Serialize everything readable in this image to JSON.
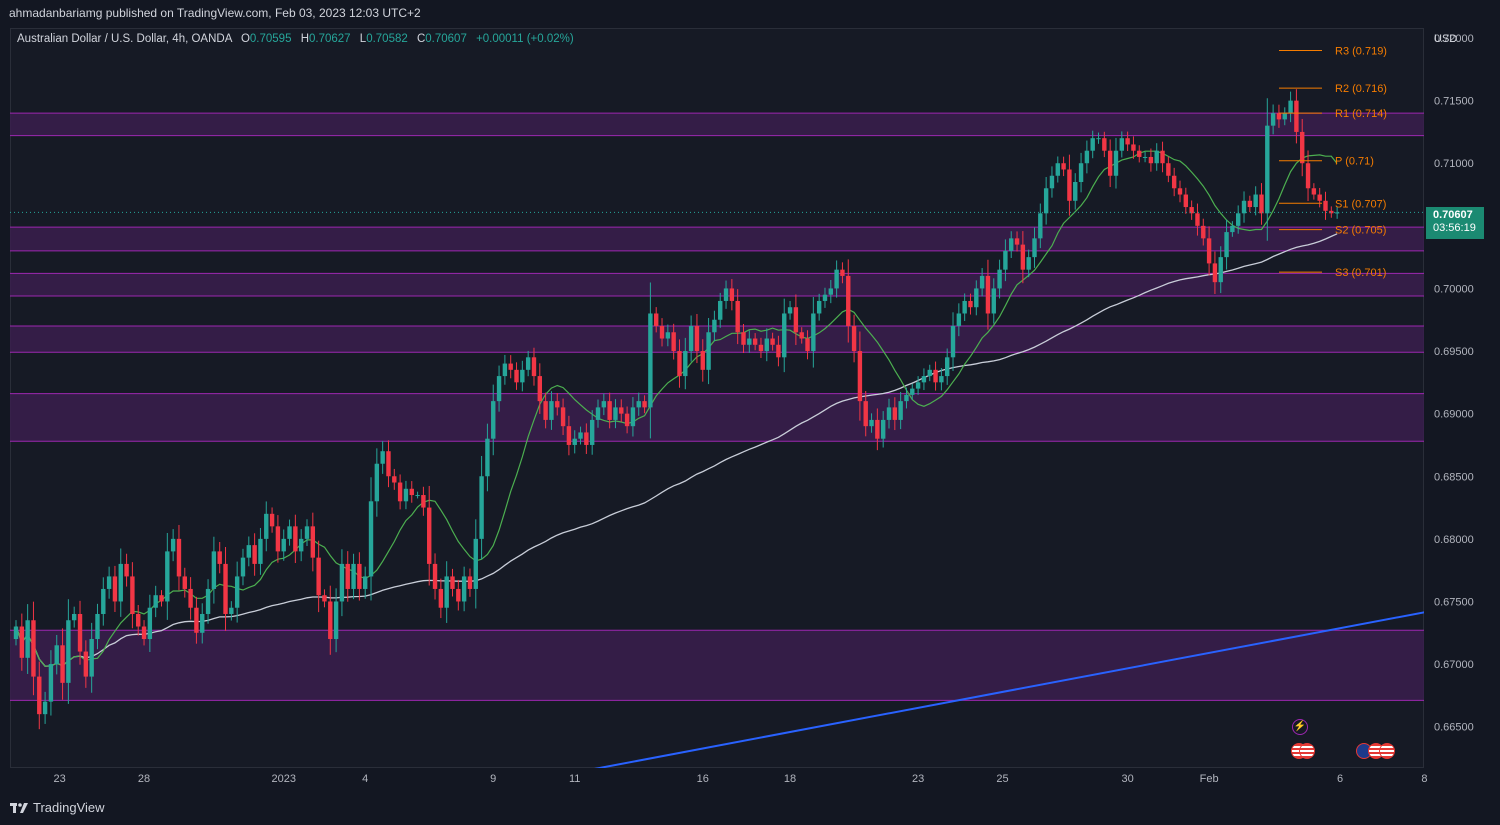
{
  "header": {
    "published": "ahmadanbariamg published on TradingView.com, Feb 03, 2023 12:03 UTC+2"
  },
  "legend": {
    "symbol": "Australian Dollar / U.S. Dollar, 4h, OANDA",
    "open_label": "O",
    "open": "0.70595",
    "high_label": "H",
    "high": "0.70627",
    "low_label": "L",
    "low": "0.70582",
    "close_label": "C",
    "close": "0.70607",
    "change": "+0.00011 (+0.02%)"
  },
  "axis": {
    "currency": "USD"
  },
  "price_tag": {
    "price": "0.70607",
    "countdown": "03:56:19"
  },
  "pivots": [
    {
      "label": "R3 (0.719)",
      "value": 0.719
    },
    {
      "label": "R2 (0.716)",
      "value": 0.716
    },
    {
      "label": "R1 (0.714)",
      "value": 0.714
    },
    {
      "label": "P (0.71)",
      "value": 0.7102
    },
    {
      "label": "S1 (0.707)",
      "value": 0.7068
    },
    {
      "label": "S2 (0.705)",
      "value": 0.7047
    },
    {
      "label": "S3 (0.701)",
      "value": 0.7013
    }
  ],
  "footer": {
    "brand": "TradingView"
  },
  "colors": {
    "up": "#26a69a",
    "down": "#f23645",
    "zone_fill": "#3a1e4e",
    "zone_border": "#9c27b0",
    "pivot": "#f57c00",
    "trendline": "#2962ff",
    "ma_fast": "#4caf50",
    "ma_slow": "#c8cdd8",
    "background": "#161a25"
  },
  "chart_data": {
    "type": "candlestick",
    "symbol": "AUDUSD",
    "timeframe": "4h",
    "y_ticks": [
      "0.72000",
      "0.71500",
      "0.71000",
      "0.70500",
      "0.70000",
      "0.69500",
      "0.69000",
      "0.68500",
      "0.68000",
      "0.67500",
      "0.67000",
      "0.66500"
    ],
    "y_tick_values": [
      0.72,
      0.715,
      0.71,
      0.705,
      0.7,
      0.695,
      0.69,
      0.685,
      0.68,
      0.675,
      0.67,
      0.665
    ],
    "ylim": [
      0.6617,
      0.7208
    ],
    "x_ticks": [
      {
        "label": "23",
        "idx": 7.5
      },
      {
        "label": "28",
        "idx": 22
      },
      {
        "label": "2023",
        "idx": 46
      },
      {
        "label": "4",
        "idx": 60
      },
      {
        "label": "9",
        "idx": 82
      },
      {
        "label": "11",
        "idx": 96
      },
      {
        "label": "16",
        "idx": 118
      },
      {
        "label": "18",
        "idx": 133
      },
      {
        "label": "23",
        "idx": 155
      },
      {
        "label": "25",
        "idx": 169.5
      },
      {
        "label": "30",
        "idx": 191
      },
      {
        "label": "Feb",
        "idx": 205
      },
      {
        "label": "6",
        "idx": 227.5
      },
      {
        "label": "8",
        "idx": 242
      }
    ],
    "zones": [
      [
        0.7122,
        0.714
      ],
      [
        0.703,
        0.7049
      ],
      [
        0.6994,
        0.7012
      ],
      [
        0.6949,
        0.697
      ],
      [
        0.6878,
        0.6916
      ],
      [
        0.6671,
        0.6727
      ]
    ],
    "trendline": {
      "from": {
        "idx": 90,
        "value": 0.6608
      },
      "to": {
        "idx": 245,
        "value": 0.6744
      }
    },
    "closes": [
      0.673,
      0.6705,
      0.6735,
      0.669,
      0.666,
      0.667,
      0.67,
      0.6715,
      0.6685,
      0.6735,
      0.674,
      0.671,
      0.669,
      0.672,
      0.674,
      0.676,
      0.677,
      0.675,
      0.678,
      0.677,
      0.674,
      0.673,
      0.672,
      0.6745,
      0.6755,
      0.675,
      0.679,
      0.68,
      0.677,
      0.676,
      0.6745,
      0.6725,
      0.674,
      0.676,
      0.679,
      0.678,
      0.674,
      0.6745,
      0.677,
      0.6785,
      0.6795,
      0.678,
      0.68,
      0.682,
      0.681,
      0.679,
      0.68,
      0.681,
      0.679,
      0.68,
      0.681,
      0.6785,
      0.6755,
      0.675,
      0.672,
      0.675,
      0.678,
      0.676,
      0.678,
      0.676,
      0.677,
      0.683,
      0.686,
      0.687,
      0.685,
      0.6845,
      0.683,
      0.684,
      0.6835,
      0.6835,
      0.6825,
      0.678,
      0.676,
      0.6745,
      0.677,
      0.676,
      0.675,
      0.677,
      0.676,
      0.68,
      0.685,
      0.688,
      0.691,
      0.693,
      0.694,
      0.6935,
      0.6925,
      0.6935,
      0.6945,
      0.693,
      0.691,
      0.6895,
      0.691,
      0.6905,
      0.689,
      0.6875,
      0.688,
      0.6885,
      0.6875,
      0.6895,
      0.6905,
      0.691,
      0.6895,
      0.6905,
      0.69,
      0.689,
      0.6905,
      0.691,
      0.6905,
      0.698,
      0.697,
      0.696,
      0.6965,
      0.695,
      0.693,
      0.695,
      0.697,
      0.695,
      0.6935,
      0.6965,
      0.6975,
      0.699,
      0.7,
      0.699,
      0.6965,
      0.6955,
      0.696,
      0.6955,
      0.695,
      0.696,
      0.6955,
      0.6945,
      0.698,
      0.6985,
      0.6965,
      0.696,
      0.695,
      0.698,
      0.699,
      0.6995,
      0.7,
      0.7015,
      0.701,
      0.697,
      0.695,
      0.691,
      0.689,
      0.6895,
      0.688,
      0.6895,
      0.6905,
      0.6895,
      0.691,
      0.6915,
      0.692,
      0.6925,
      0.693,
      0.6935,
      0.6925,
      0.693,
      0.6945,
      0.697,
      0.698,
      0.699,
      0.6985,
      0.7,
      0.701,
      0.698,
      0.7,
      0.7015,
      0.703,
      0.704,
      0.7035,
      0.7015,
      0.7025,
      0.704,
      0.706,
      0.708,
      0.709,
      0.71,
      0.7095,
      0.707,
      0.7085,
      0.71,
      0.711,
      0.712,
      0.712,
      0.711,
      0.709,
      0.711,
      0.712,
      0.7115,
      0.711,
      0.7105,
      0.7105,
      0.71,
      0.711,
      0.71,
      0.709,
      0.708,
      0.7075,
      0.7065,
      0.706,
      0.705,
      0.704,
      0.702,
      0.7005,
      0.7025,
      0.7045,
      0.705,
      0.706,
      0.707,
      0.7065,
      0.7075,
      0.706,
      0.713,
      0.714,
      0.7135,
      0.714,
      0.715,
      0.7125,
      0.71,
      0.708,
      0.7075,
      0.707,
      0.7062,
      0.706,
      0.70607
    ]
  }
}
